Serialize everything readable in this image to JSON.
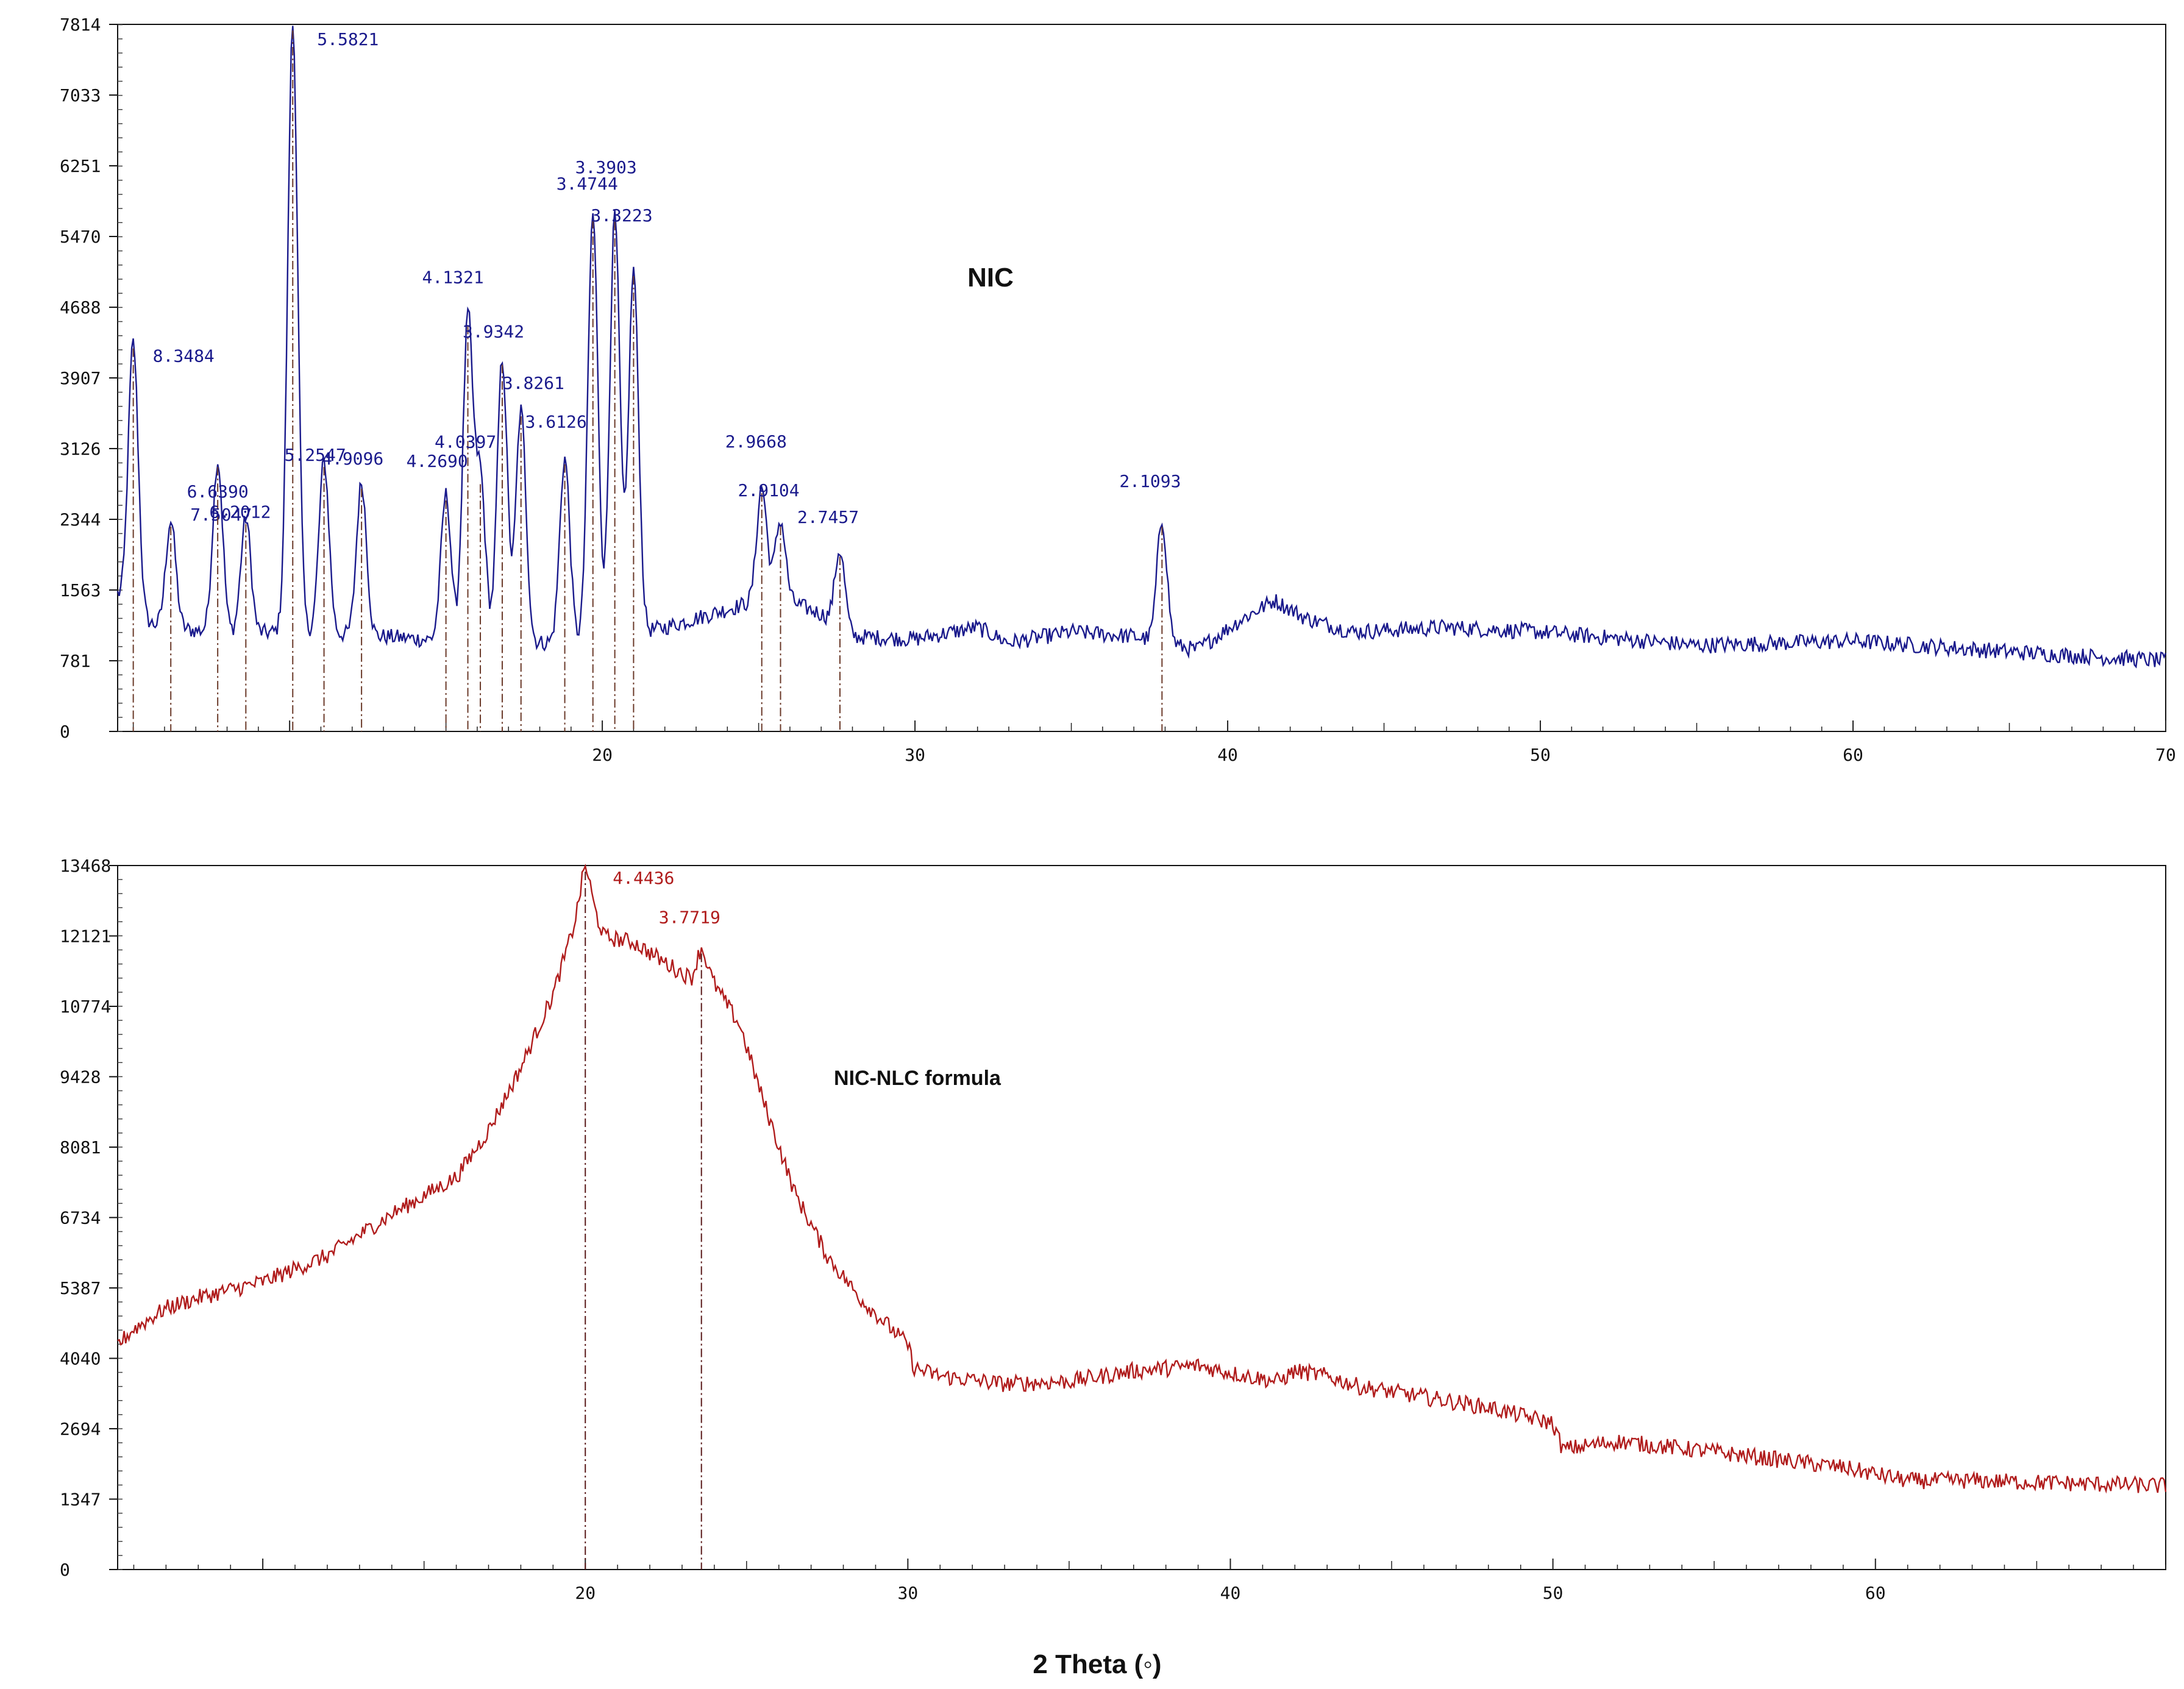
{
  "figure": {
    "xlabel": "2 Theta (◦)"
  },
  "chart_data": [
    {
      "type": "line",
      "title": "NIC",
      "xlabel": "2 Theta (◦)",
      "ylabel": "",
      "xlim": [
        4.5,
        70
      ],
      "ylim": [
        0,
        7814
      ],
      "xticks": [
        20,
        30,
        40,
        50,
        60,
        70
      ],
      "xtick_labels": [
        "20",
        "30",
        "40",
        "50",
        "60",
        "70"
      ],
      "yticks": [
        0,
        781,
        1563,
        2344,
        3126,
        3907,
        4688,
        5470,
        6251,
        7033,
        7814
      ],
      "ytick_labels": [
        "0",
        "781",
        "1563",
        "2344",
        "3126",
        "3907",
        "4688",
        "5470",
        "6251",
        "7033",
        "7814"
      ],
      "color": "#1a1a8c",
      "baseline": [
        [
          4.5,
          1500
        ],
        [
          5.0,
          1250
        ],
        [
          6.0,
          1150
        ],
        [
          8.0,
          1080
        ],
        [
          10.0,
          1100
        ],
        [
          13.0,
          1050
        ],
        [
          15.0,
          1000
        ],
        [
          18.0,
          980
        ],
        [
          20.0,
          1000
        ],
        [
          22.0,
          1150
        ],
        [
          24.0,
          1350
        ],
        [
          25.5,
          1500
        ],
        [
          27.0,
          1300
        ],
        [
          28.0,
          1050
        ],
        [
          30.0,
          1020
        ],
        [
          32.0,
          1150
        ],
        [
          33.0,
          980
        ],
        [
          35.0,
          1100
        ],
        [
          37.0,
          1050
        ],
        [
          39.0,
          900
        ],
        [
          40.5,
          1250
        ],
        [
          41.5,
          1450
        ],
        [
          42.5,
          1250
        ],
        [
          44.0,
          1100
        ],
        [
          47.0,
          1150
        ],
        [
          50.0,
          1100
        ],
        [
          55.0,
          950
        ],
        [
          60.0,
          1000
        ],
        [
          65.0,
          880
        ],
        [
          70.0,
          780
        ]
      ],
      "peaks": [
        {
          "x": 5.0,
          "y": 4300,
          "d": "8.3484"
        },
        {
          "x": 6.2,
          "y": 2330,
          "d": "7.5047"
        },
        {
          "x": 7.7,
          "y": 2990,
          "d": "6.6390"
        },
        {
          "x": 8.6,
          "y": 2360,
          "d": "6.2012"
        },
        {
          "x": 10.1,
          "y": 7814,
          "d": "5.5821"
        },
        {
          "x": 11.1,
          "y": 2990,
          "d": "5.2547"
        },
        {
          "x": 12.3,
          "y": 2750,
          "d": "4.9096"
        },
        {
          "x": 15.0,
          "y": 2620,
          "d": "4.2690"
        },
        {
          "x": 15.7,
          "y": 4550,
          "d": "4.1321"
        },
        {
          "x": 16.1,
          "y": 2800,
          "d": "4.0397"
        },
        {
          "x": 16.8,
          "y": 4120,
          "d": "3.9342"
        },
        {
          "x": 17.4,
          "y": 3550,
          "d": "3.8261"
        },
        {
          "x": 18.8,
          "y": 3020,
          "d": "3.6126"
        },
        {
          "x": 19.7,
          "y": 5720,
          "d": "3.4744"
        },
        {
          "x": 20.4,
          "y": 5700,
          "d": "3.3903"
        },
        {
          "x": 21.0,
          "y": 5100,
          "d": "3.3223"
        },
        {
          "x": 25.1,
          "y": 2700,
          "d": "2.9668"
        },
        {
          "x": 25.7,
          "y": 2330,
          "d": "2.9104"
        },
        {
          "x": 27.6,
          "y": 2000,
          "d": "2.7457"
        },
        {
          "x": 37.9,
          "y": 2330,
          "d": "2.1093"
        }
      ],
      "annotations": [
        "5.5821",
        "8.3484",
        "6.6390",
        "7.5047",
        "6.2012",
        "5.2547",
        "4.9096",
        "4.1321",
        "3.9342",
        "3.8261",
        "4.2690",
        "4.0397",
        "3.6126",
        "3.3903",
        "3.4744",
        "3.3223",
        "2.9668",
        "2.9104",
        "2.7457",
        "2.1093"
      ]
    },
    {
      "type": "line",
      "title": "NIC-NLC formula",
      "xlabel": "2 Theta (◦)",
      "ylabel": "",
      "xlim": [
        5.5,
        69
      ],
      "ylim": [
        0,
        13468
      ],
      "xticks": [
        20,
        30,
        40,
        50,
        60
      ],
      "xtick_labels": [
        "20",
        "30",
        "40",
        "50",
        "60"
      ],
      "yticks": [
        0,
        1347,
        2694,
        4040,
        5387,
        6734,
        8081,
        9428,
        10774,
        12121,
        13468
      ],
      "ytick_labels": [
        "0",
        "1347",
        "2694",
        "4040",
        "5387",
        "6734",
        "8081",
        "9428",
        "10774",
        "12121",
        "13468"
      ],
      "color": "#b01c1c",
      "baseline": [
        [
          5.5,
          4300
        ],
        [
          6.0,
          4600
        ],
        [
          7.0,
          5000
        ],
        [
          8.0,
          5200
        ],
        [
          10.0,
          5500
        ],
        [
          12.0,
          6000
        ],
        [
          14.0,
          6800
        ],
        [
          16.0,
          7500
        ],
        [
          17.0,
          8400
        ],
        [
          18.0,
          9600
        ],
        [
          19.0,
          11000
        ],
        [
          19.5,
          12000
        ],
        [
          20.0,
          13000
        ],
        [
          20.6,
          12100
        ],
        [
          21.5,
          12000
        ],
        [
          22.5,
          11600
        ],
        [
          23.3,
          11300
        ],
        [
          23.6,
          11700
        ],
        [
          24.0,
          11200
        ],
        [
          24.8,
          10400
        ],
        [
          25.5,
          9000
        ],
        [
          26.5,
          7200
        ],
        [
          27.5,
          6000
        ],
        [
          28.5,
          5200
        ],
        [
          29.5,
          4600
        ],
        [
          30.0,
          4300
        ],
        [
          30.2,
          3850
        ],
        [
          31.0,
          3700
        ],
        [
          33.0,
          3550
        ],
        [
          35.0,
          3600
        ],
        [
          37.0,
          3800
        ],
        [
          39.0,
          3900
        ],
        [
          40.5,
          3700
        ],
        [
          41.5,
          3600
        ],
        [
          42.0,
          3800
        ],
        [
          43.0,
          3700
        ],
        [
          44.0,
          3500
        ],
        [
          46.0,
          3300
        ],
        [
          48.0,
          3100
        ],
        [
          50.0,
          2800
        ],
        [
          50.3,
          2300
        ],
        [
          52.0,
          2450
        ],
        [
          55.0,
          2250
        ],
        [
          57.0,
          2100
        ],
        [
          59.0,
          1950
        ],
        [
          61.0,
          1700
        ],
        [
          63.0,
          1700
        ],
        [
          66.0,
          1650
        ],
        [
          69.0,
          1600
        ]
      ],
      "peaks": [
        {
          "x": 20.0,
          "y": 13468,
          "d": "4.4436"
        },
        {
          "x": 23.6,
          "y": 11900,
          "d": "3.7719"
        }
      ],
      "annotations": [
        "4.4436",
        "3.7719"
      ]
    }
  ]
}
